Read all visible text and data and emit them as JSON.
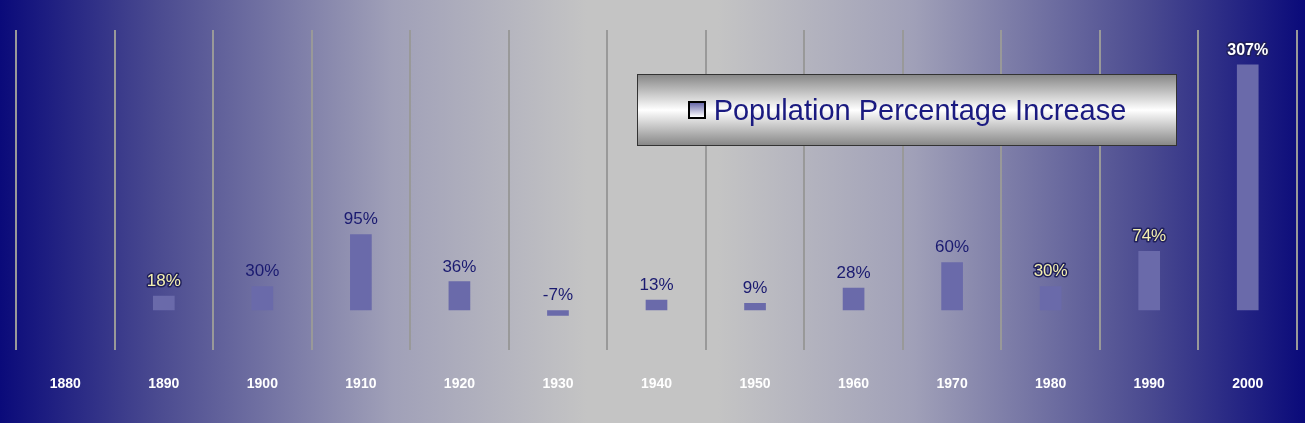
{
  "chart_data": {
    "type": "bar",
    "categories": [
      "1880",
      "1890",
      "1900",
      "1910",
      "1920",
      "1930",
      "1940",
      "1950",
      "1960",
      "1970",
      "1980",
      "1990",
      "2000"
    ],
    "series": [
      {
        "name": "Population Percentage Increase",
        "color": "#6a6aaa",
        "values": [
          null,
          18,
          30,
          95,
          36,
          -7,
          13,
          9,
          28,
          60,
          30,
          74,
          307
        ],
        "value_labels": [
          null,
          "18%",
          "30%",
          "95%",
          "36%",
          "-7%",
          "13%",
          "9%",
          "28%",
          "60%",
          "30%",
          "74%",
          "307%"
        ]
      }
    ],
    "grid": "x",
    "legend": "top right",
    "tick_labels": "x"
  }
}
